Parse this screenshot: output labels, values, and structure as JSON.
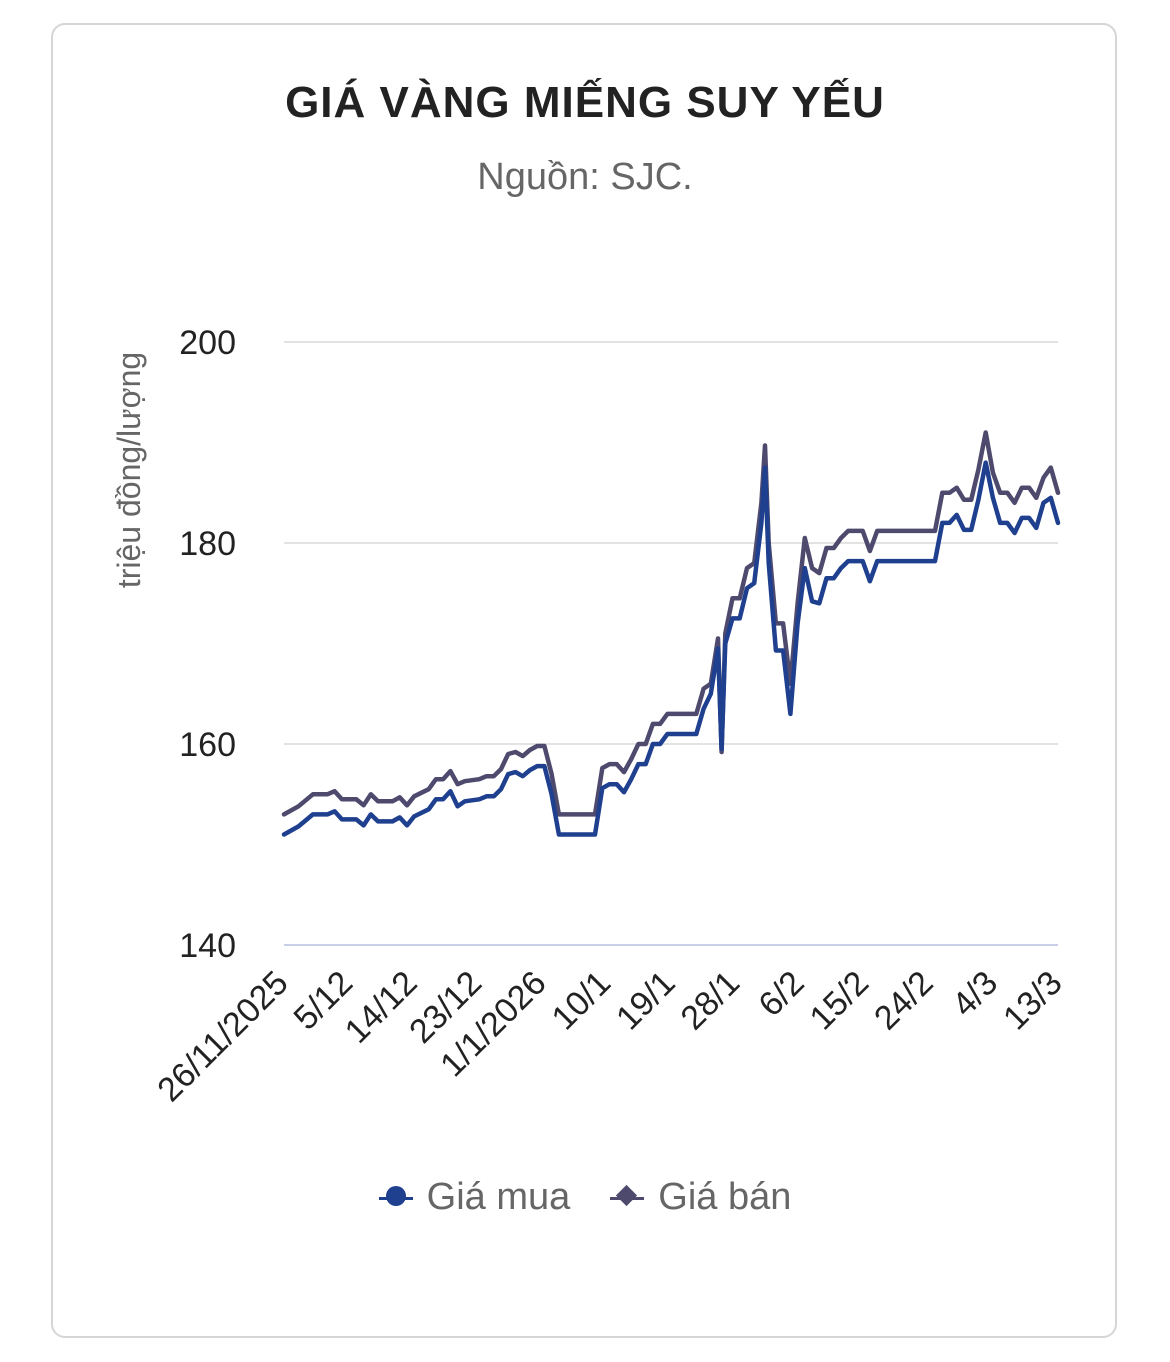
{
  "title": "GIÁ VÀNG MIẾNG SUY YẾU",
  "subtitle": "Nguồn: SJC.",
  "colors": {
    "buy": "#1f3f8f",
    "sell": "#4e4a6e",
    "grid": "#e3e3e3",
    "axis": "#c9cfe8"
  },
  "chart_data": {
    "type": "line",
    "title": "GIÁ VÀNG MIẾNG SUY YẾU",
    "subtitle": "Nguồn: SJC.",
    "xlabel": "",
    "ylabel": "triệu đồng/lượng",
    "ylim": [
      140,
      200
    ],
    "yticks": [
      140,
      160,
      180,
      200
    ],
    "grid": true,
    "legend": "bottom",
    "xlim": [
      "26/11/2025",
      "13/3/2026"
    ],
    "x_tick_labels": [
      "26/11/2025",
      "5/12",
      "14/12",
      "23/12",
      "1/1/2026",
      "10/1",
      "19/1",
      "28/1",
      "6/2",
      "15/2",
      "24/2",
      "4/3",
      "13/3"
    ],
    "series": [
      {
        "name": "Giá mua",
        "marker": "circle",
        "points": [
          [
            "26/11/2025",
            151.0
          ],
          [
            "28/11/2025",
            151.8
          ],
          [
            "30/11/2025",
            153.0
          ],
          [
            "2/12/2025",
            153.0
          ],
          [
            "3/12/2025",
            153.3
          ],
          [
            "4/12/2025",
            152.5
          ],
          [
            "6/12/2025",
            152.5
          ],
          [
            "7/12/2025",
            151.9
          ],
          [
            "8/12/2025",
            153.0
          ],
          [
            "9/12/2025",
            152.3
          ],
          [
            "11/12/2025",
            152.3
          ],
          [
            "12/12/2025",
            152.7
          ],
          [
            "13/12/2025",
            151.9
          ],
          [
            "14/12/2025",
            152.8
          ],
          [
            "16/12/2025",
            153.5
          ],
          [
            "17/12/2025",
            154.5
          ],
          [
            "18/12/2025",
            154.5
          ],
          [
            "19/12/2025",
            155.3
          ],
          [
            "20/12/2025",
            153.8
          ],
          [
            "21/12/2025",
            154.3
          ],
          [
            "23/12/2025",
            154.5
          ],
          [
            "24/12/2025",
            154.8
          ],
          [
            "25/12/2025",
            154.8
          ],
          [
            "26/12/2025",
            155.5
          ],
          [
            "27/12/2025",
            157.0
          ],
          [
            "28/12/2025",
            157.2
          ],
          [
            "29/12/2025",
            156.8
          ],
          [
            "30/12/2025",
            157.4
          ],
          [
            "31/12/2025",
            157.8
          ],
          [
            "1/1/2026",
            157.8
          ],
          [
            "2/1/2026",
            155.0
          ],
          [
            "3/1/2026",
            151.0
          ],
          [
            "8/1/2026",
            151.0
          ],
          [
            "9/1/2026",
            155.6
          ],
          [
            "10/1/2026",
            156.0
          ],
          [
            "11/1/2026",
            156.0
          ],
          [
            "12/1/2026",
            155.2
          ],
          [
            "13/1/2026",
            156.5
          ],
          [
            "14/1/2026",
            158.0
          ],
          [
            "15/1/2026",
            158.0
          ],
          [
            "16/1/2026",
            160.0
          ],
          [
            "17/1/2026",
            160.0
          ],
          [
            "18/1/2026",
            161.0
          ],
          [
            "22/1/2026",
            161.0
          ],
          [
            "23/1/2026",
            163.5
          ],
          [
            "24/1/2026",
            165.0
          ],
          [
            "25/1/2026",
            169.5
          ],
          [
            "25.5/1/2026",
            159.5
          ],
          [
            "26/1/2026",
            170.0
          ],
          [
            "27/1/2026",
            172.5
          ],
          [
            "28/1/2026",
            172.5
          ],
          [
            "29/1/2026",
            175.5
          ],
          [
            "30/1/2026",
            176.0
          ],
          [
            "31/1/2026",
            182.0
          ],
          [
            "31.5/1/2026",
            187.5
          ],
          [
            "1/2/2026",
            178.0
          ],
          [
            "2/2/2026",
            169.3
          ],
          [
            "3/2/2026",
            169.3
          ],
          [
            "4/2/2026",
            163.0
          ],
          [
            "5/2/2026",
            172.0
          ],
          [
            "6/2/2026",
            177.5
          ],
          [
            "7/2/2026",
            174.2
          ],
          [
            "8/2/2026",
            174.0
          ],
          [
            "9/2/2026",
            176.5
          ],
          [
            "10/2/2026",
            176.5
          ],
          [
            "11/2/2026",
            177.5
          ],
          [
            "12/2/2026",
            178.2
          ],
          [
            "14/2/2026",
            178.2
          ],
          [
            "15/2/2026",
            176.2
          ],
          [
            "16/2/2026",
            178.2
          ],
          [
            "24/2/2026",
            178.2
          ],
          [
            "25/2/2026",
            182.0
          ],
          [
            "26/2/2026",
            182.0
          ],
          [
            "27/2/2026",
            182.8
          ],
          [
            "28/2/2026",
            181.3
          ],
          [
            "29/2/2026",
            181.3
          ],
          [
            "30/2/2026",
            184.3
          ],
          [
            "2/3/2026",
            184.3
          ],
          [
            "3/3/2026",
            188.0
          ],
          [
            "4/3/2026",
            184.5
          ],
          [
            "5/3/2026",
            182.0
          ],
          [
            "6/3/2026",
            182.0
          ],
          [
            "7/3/2026",
            181.0
          ],
          [
            "8/3/2026",
            182.5
          ],
          [
            "9/3/2026",
            182.5
          ],
          [
            "10/3/2026",
            181.5
          ],
          [
            "11/3/2026",
            184.0
          ],
          [
            "12/3/2026",
            184.5
          ],
          [
            "13/3/2026",
            182.0
          ]
        ]
      },
      {
        "name": "Giá bán",
        "marker": "diamond",
        "points": [
          [
            "26/11/2025",
            153.0
          ],
          [
            "28/11/2025",
            153.8
          ],
          [
            "30/11/2025",
            155.0
          ],
          [
            "2/12/2025",
            155.0
          ],
          [
            "3/12/2025",
            155.3
          ],
          [
            "4/12/2025",
            154.5
          ],
          [
            "6/12/2025",
            154.5
          ],
          [
            "7/12/2025",
            153.9
          ],
          [
            "8/12/2025",
            155.0
          ],
          [
            "9/12/2025",
            154.3
          ],
          [
            "11/12/2025",
            154.3
          ],
          [
            "12/12/2025",
            154.7
          ],
          [
            "13/12/2025",
            153.9
          ],
          [
            "14/12/2025",
            154.8
          ],
          [
            "16/12/2025",
            155.5
          ],
          [
            "17/12/2025",
            156.5
          ],
          [
            "18/12/2025",
            156.5
          ],
          [
            "19/12/2025",
            157.3
          ],
          [
            "20/12/2025",
            156.0
          ],
          [
            "21/12/2025",
            156.3
          ],
          [
            "23/12/2025",
            156.5
          ],
          [
            "24/12/2025",
            156.8
          ],
          [
            "25/12/2025",
            156.8
          ],
          [
            "26/12/2025",
            157.5
          ],
          [
            "27/12/2025",
            159.0
          ],
          [
            "28/12/2025",
            159.2
          ],
          [
            "29/12/2025",
            158.8
          ],
          [
            "30/12/2025",
            159.4
          ],
          [
            "31/12/2025",
            159.8
          ],
          [
            "1/1/2026",
            159.8
          ],
          [
            "2/1/2026",
            157.0
          ],
          [
            "3/1/2026",
            153.0
          ],
          [
            "8/1/2026",
            153.0
          ],
          [
            "9/1/2026",
            157.6
          ],
          [
            "10/1/2026",
            158.0
          ],
          [
            "11/1/2026",
            158.0
          ],
          [
            "12/1/2026",
            157.2
          ],
          [
            "13/1/2026",
            158.5
          ],
          [
            "14/1/2026",
            160.0
          ],
          [
            "15/1/2026",
            160.0
          ],
          [
            "16/1/2026",
            162.0
          ],
          [
            "17/1/2026",
            162.0
          ],
          [
            "18/1/2026",
            163.0
          ],
          [
            "22/1/2026",
            163.0
          ],
          [
            "23/1/2026",
            165.5
          ],
          [
            "24/1/2026",
            166.0
          ],
          [
            "25/1/2026",
            170.5
          ],
          [
            "25.5/1/2026",
            159.2
          ],
          [
            "26/1/2026",
            171.0
          ],
          [
            "27/1/2026",
            174.5
          ],
          [
            "28/1/2026",
            174.5
          ],
          [
            "29/1/2026",
            177.5
          ],
          [
            "30/1/2026",
            178.0
          ],
          [
            "31/1/2026",
            184.0
          ],
          [
            "31.5/1/2026",
            189.7
          ],
          [
            "1/2/2026",
            180.0
          ],
          [
            "2/2/2026",
            172.0
          ],
          [
            "3/2/2026",
            172.0
          ],
          [
            "4/2/2026",
            166.0
          ],
          [
            "5/2/2026",
            174.0
          ],
          [
            "6/2/2026",
            180.5
          ],
          [
            "7/2/2026",
            177.5
          ],
          [
            "8/2/2026",
            177.0
          ],
          [
            "9/2/2026",
            179.5
          ],
          [
            "10/2/2026",
            179.5
          ],
          [
            "11/2/2026",
            180.5
          ],
          [
            "12/2/2026",
            181.2
          ],
          [
            "14/2/2026",
            181.2
          ],
          [
            "15/2/2026",
            179.2
          ],
          [
            "16/2/2026",
            181.2
          ],
          [
            "24/2/2026",
            181.2
          ],
          [
            "25/2/2026",
            185.0
          ],
          [
            "26/2/2026",
            185.0
          ],
          [
            "27/2/2026",
            185.5
          ],
          [
            "28/2/2026",
            184.3
          ],
          [
            "29/2/2026",
            184.3
          ],
          [
            "30/2/2026",
            187.3
          ],
          [
            "2/3/2026",
            187.3
          ],
          [
            "3/3/2026",
            191.0
          ],
          [
            "4/3/2026",
            187.0
          ],
          [
            "5/3/2026",
            185.0
          ],
          [
            "6/3/2026",
            185.0
          ],
          [
            "7/3/2026",
            184.0
          ],
          [
            "8/3/2026",
            185.5
          ],
          [
            "9/3/2026",
            185.5
          ],
          [
            "10/3/2026",
            184.5
          ],
          [
            "11/3/2026",
            186.5
          ],
          [
            "12/3/2026",
            187.5
          ],
          [
            "13/3/2026",
            185.0
          ]
        ]
      }
    ]
  }
}
